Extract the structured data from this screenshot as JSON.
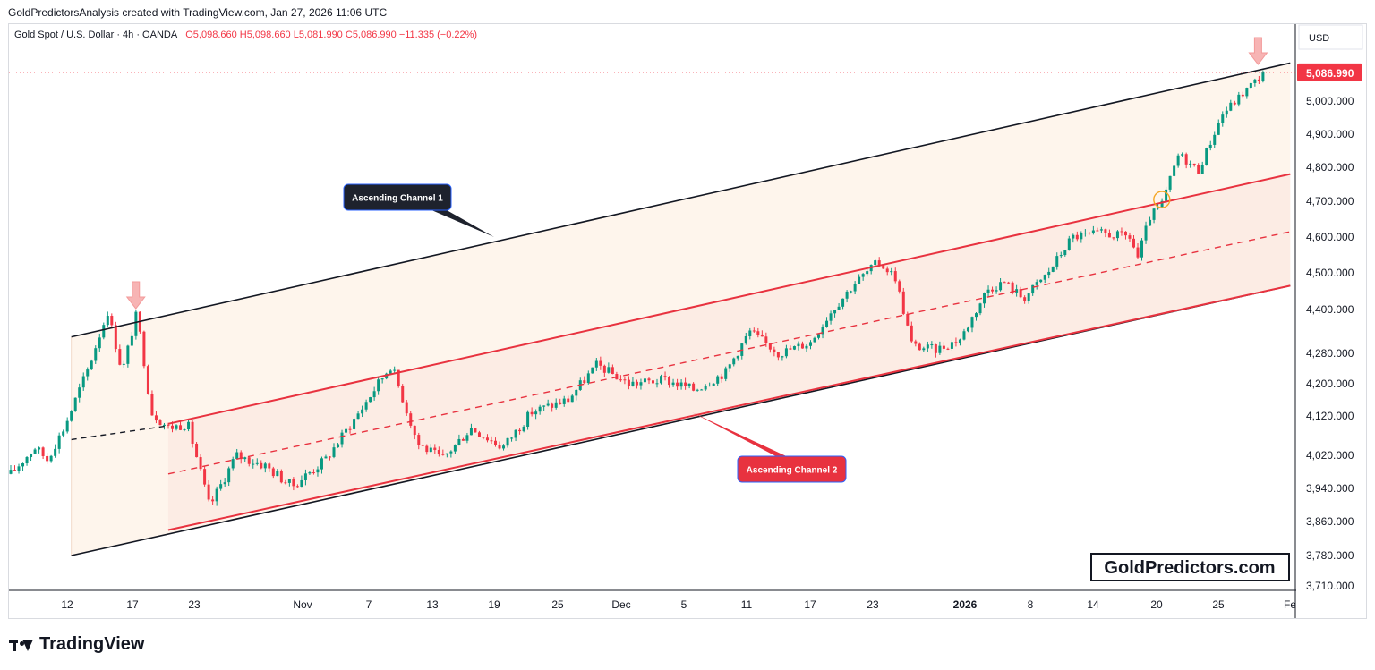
{
  "attribution": "GoldPredictorsAnalysis created with TradingView.com, Jan 27, 2026 11:06 UTC",
  "legend": {
    "symbol": "Gold Spot / U.S. Dollar · 4h · OANDA",
    "open": "O5,098.660",
    "high": "H5,098.660",
    "low": "L5,081.990",
    "close": "C5,086.990",
    "change": "−11.335 (−0.22%)"
  },
  "currency_button": "USD",
  "price_tag": "5,086.990",
  "watermark": "GoldPredictors.com",
  "brand": "TradingView",
  "colors": {
    "up": "#089981",
    "down": "#f23645",
    "channel1": "#131722",
    "channel2": "#e8323f",
    "fill": "#fdf1e6"
  },
  "chart_data": {
    "type": "candlestick",
    "instrument": "Gold Spot / U.S. Dollar",
    "timeframe": "4h",
    "ylim": [
      3710,
      5100
    ],
    "y_ticks": [
      "5,000.000",
      "4,900.000",
      "4,800.000",
      "4,700.000",
      "4,600.000",
      "4,500.000",
      "4,400.000",
      "4,280.000",
      "4,200.000",
      "4,120.000",
      "4,020.000",
      "3,940.000",
      "3,860.000",
      "3,780.000",
      "3,710.000"
    ],
    "x_ticks": [
      "12",
      "17",
      "23",
      "Nov",
      "7",
      "13",
      "19",
      "25",
      "Dec",
      "5",
      "11",
      "17",
      "23",
      "2026",
      "8",
      "14",
      "20",
      "25",
      "Fe"
    ],
    "price_path": [
      [
        0,
        3975
      ],
      [
        1,
        4040
      ],
      [
        1.5,
        4010
      ],
      [
        2.2,
        4090
      ],
      [
        3.2,
        4240
      ],
      [
        4.0,
        4395
      ],
      [
        4.6,
        4230
      ],
      [
        5.2,
        4390
      ],
      [
        5.8,
        4130
      ],
      [
        6.5,
        4090
      ],
      [
        7.3,
        4100
      ],
      [
        8.2,
        3895
      ],
      [
        9.3,
        4020
      ],
      [
        10.5,
        3995
      ],
      [
        11.6,
        3945
      ],
      [
        13.0,
        4010
      ],
      [
        14.5,
        4140
      ],
      [
        15.7,
        4250
      ],
      [
        16.8,
        4050
      ],
      [
        17.8,
        4010
      ],
      [
        19.0,
        4090
      ],
      [
        20.3,
        4040
      ],
      [
        21.5,
        4130
      ],
      [
        23.0,
        4160
      ],
      [
        24.2,
        4250
      ],
      [
        25.5,
        4200
      ],
      [
        27.0,
        4210
      ],
      [
        28.2,
        4185
      ],
      [
        29.5,
        4230
      ],
      [
        30.5,
        4340
      ],
      [
        31.7,
        4280
      ],
      [
        33.0,
        4310
      ],
      [
        33.8,
        4390
      ],
      [
        34.8,
        4470
      ],
      [
        35.8,
        4530
      ],
      [
        36.5,
        4490
      ],
      [
        37.2,
        4300
      ],
      [
        38.2,
        4290
      ],
      [
        39.2,
        4320
      ],
      [
        40.3,
        4455
      ],
      [
        41.0,
        4475
      ],
      [
        41.8,
        4430
      ],
      [
        42.8,
        4500
      ],
      [
        43.8,
        4600
      ],
      [
        45.0,
        4610
      ],
      [
        46.2,
        4600
      ],
      [
        46.5,
        4540
      ],
      [
        47.0,
        4655
      ],
      [
        47.5,
        4690
      ],
      [
        48.2,
        4840
      ],
      [
        49.0,
        4790
      ],
      [
        50.0,
        4960
      ],
      [
        51.2,
        5050
      ],
      [
        51.8,
        5086.99
      ]
    ],
    "annotations": [
      {
        "label": "Ascending Channel 1",
        "style": "dark callout"
      },
      {
        "label": "Ascending Channel 2",
        "style": "red callout"
      }
    ],
    "channels": [
      {
        "name": "Ascending Channel 1",
        "color": "#131722",
        "upper": [
          [
            2.5,
            4325
          ],
          [
            52.8,
            5115
          ]
        ],
        "lower": [
          [
            2.5,
            3780
          ],
          [
            52.8,
            4465
          ]
        ]
      },
      {
        "name": "Ascending Channel 2",
        "color": "#e8323f",
        "upper": [
          [
            6.5,
            4100
          ],
          [
            52.8,
            4780
          ]
        ],
        "mid": [
          [
            6.5,
            3975
          ],
          [
            52.8,
            4615
          ]
        ],
        "lower": [
          [
            6.5,
            3840
          ],
          [
            52.8,
            4465
          ]
        ]
      }
    ],
    "last_price": 5086.99
  }
}
